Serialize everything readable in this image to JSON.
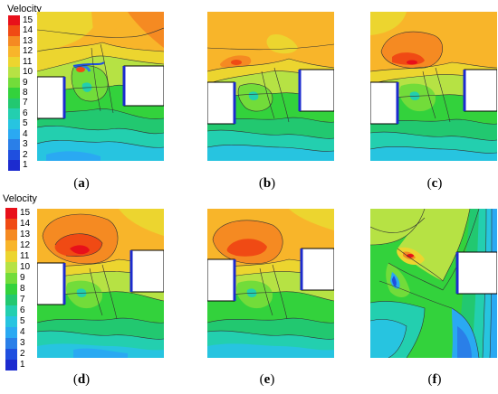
{
  "legend": {
    "title": "Velocity",
    "levels": [
      "15",
      "14",
      "13",
      "12",
      "11",
      "10",
      "9",
      "8",
      "7",
      "6",
      "5",
      "4",
      "3",
      "2",
      "1"
    ],
    "colors": [
      "#e8101a",
      "#f04a14",
      "#f58a22",
      "#f8b52a",
      "#ecd52f",
      "#b6e244",
      "#72dc3a",
      "#33d23c",
      "#22c870",
      "#23cfaf",
      "#27c4e0",
      "#2aa9f2",
      "#2a7fe8",
      "#1f4fdf",
      "#1c2bcf"
    ]
  },
  "panels": [
    {
      "caption": "a"
    },
    {
      "caption": "b"
    },
    {
      "caption": "c"
    },
    {
      "caption": "d"
    },
    {
      "caption": "e"
    },
    {
      "caption": "f"
    }
  ]
}
